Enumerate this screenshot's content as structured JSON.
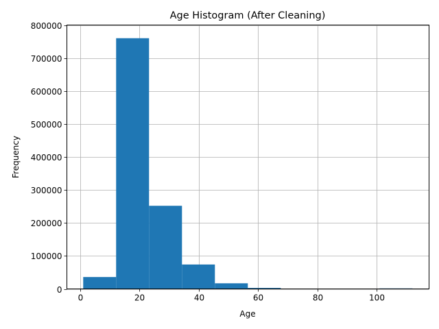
{
  "chart_data": {
    "type": "bar",
    "title": "Age Histogram (After Cleaning)",
    "xlabel": "Age",
    "ylabel": "Frequency",
    "xlim": [
      -4.5,
      117.6
    ],
    "ylim": [
      0,
      800000
    ],
    "grid": true,
    "bar_color": "#1f77b4",
    "bins": [
      {
        "x0": 1.0,
        "x1": 12.1,
        "count": 36000
      },
      {
        "x0": 12.1,
        "x1": 23.2,
        "count": 760000
      },
      {
        "x0": 23.2,
        "x1": 34.3,
        "count": 252000
      },
      {
        "x0": 34.3,
        "x1": 45.4,
        "count": 74000
      },
      {
        "x0": 45.4,
        "x1": 56.5,
        "count": 17000
      },
      {
        "x0": 56.5,
        "x1": 67.6,
        "count": 3000
      },
      {
        "x0": 67.6,
        "x1": 78.7,
        "count": 300
      },
      {
        "x0": 78.7,
        "x1": 89.8,
        "count": 100
      },
      {
        "x0": 89.8,
        "x1": 100.9,
        "count": 100
      },
      {
        "x0": 100.9,
        "x1": 112.0,
        "count": 1500
      }
    ],
    "x_ticks": [
      {
        "value": 0,
        "label": "0"
      },
      {
        "value": 20,
        "label": "20"
      },
      {
        "value": 40,
        "label": "40"
      },
      {
        "value": 60,
        "label": "60"
      },
      {
        "value": 80,
        "label": "80"
      },
      {
        "value": 100,
        "label": "100"
      }
    ],
    "y_ticks": [
      {
        "value": 0,
        "label": "0"
      },
      {
        "value": 100000,
        "label": "100000"
      },
      {
        "value": 200000,
        "label": "200000"
      },
      {
        "value": 300000,
        "label": "300000"
      },
      {
        "value": 400000,
        "label": "400000"
      },
      {
        "value": 500000,
        "label": "500000"
      },
      {
        "value": 600000,
        "label": "600000"
      },
      {
        "value": 700000,
        "label": "700000"
      },
      {
        "value": 800000,
        "label": "800000"
      }
    ]
  }
}
